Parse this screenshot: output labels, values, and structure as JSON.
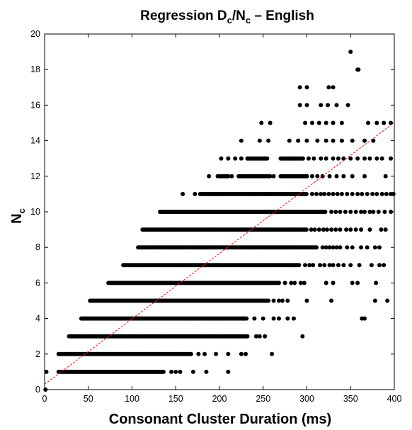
{
  "chart_data": {
    "type": "scatter",
    "title": {
      "main": "Regression D",
      "sub1": "c",
      "mid": "/N",
      "sub2": "c",
      "tail": " – English"
    },
    "xlabel": "Consonant Cluster Duration (ms)",
    "ylabel": {
      "main": "N",
      "sub": "c"
    },
    "xlim": [
      0,
      400
    ],
    "ylim": [
      0,
      20
    ],
    "xticks": [
      0,
      50,
      100,
      150,
      200,
      250,
      300,
      350,
      400
    ],
    "yticks": [
      0,
      2,
      4,
      6,
      8,
      10,
      12,
      14,
      16,
      18,
      20
    ],
    "xtick_labels": [
      "0",
      "50",
      "100",
      "150",
      "200",
      "250",
      "300",
      "350",
      "400"
    ],
    "ytick_labels": [
      "0",
      "2",
      "4",
      "6",
      "8",
      "10",
      "12",
      "14",
      "16",
      "18",
      "20"
    ],
    "grid": false,
    "point_color": "#000000",
    "regression_color": "#e8221a",
    "regression_line": {
      "intercept": 0.3,
      "slope": 0.0368
    },
    "series": [
      {
        "values": [
          {
            "y": 0,
            "ranges": [
              [
                1,
                1
              ]
            ]
          },
          {
            "y": 1,
            "ranges": [
              [
                2,
                2
              ],
              [
                16,
                137
              ]
            ],
            "points": [
              [
                145,
                1
              ],
              [
                150,
                1
              ],
              [
                155,
                1
              ],
              [
                170,
                1
              ],
              [
                185,
                1
              ],
              [
                210,
                1
              ]
            ]
          },
          {
            "y": 2,
            "ranges": [
              [
                16,
                168
              ]
            ],
            "points": [
              [
                176,
                2
              ],
              [
                183,
                2
              ],
              [
                196,
                2
              ],
              [
                210,
                2
              ],
              [
                225,
                2
              ],
              [
                230,
                2
              ],
              [
                260,
                2
              ]
            ]
          },
          {
            "y": 3,
            "ranges": [
              [
                28,
                232
              ]
            ],
            "points": [
              [
                242,
                3
              ],
              [
                246,
                3
              ],
              [
                252,
                3
              ],
              [
                295,
                3
              ]
            ]
          },
          {
            "y": 4,
            "ranges": [
              [
                42,
                232
              ]
            ],
            "points": [
              [
                240,
                4
              ],
              [
                250,
                4
              ],
              [
                262,
                4
              ],
              [
                268,
                4
              ],
              [
                278,
                4
              ],
              [
                285,
                4
              ],
              [
                363,
                4
              ],
              [
                366,
                4
              ]
            ]
          },
          {
            "y": 5,
            "ranges": [
              [
                52,
                256
              ]
            ],
            "points": [
              [
                262,
                5
              ],
              [
                268,
                5
              ],
              [
                272,
                5
              ],
              [
                278,
                5
              ],
              [
                300,
                5
              ],
              [
                328,
                5
              ],
              [
                378,
                5
              ],
              [
                392,
                5
              ]
            ]
          },
          {
            "y": 6,
            "ranges": [
              [
                73,
                268
              ]
            ],
            "points": [
              [
                275,
                6
              ],
              [
                282,
                6
              ],
              [
                286,
                6
              ],
              [
                293,
                6
              ],
              [
                297,
                6
              ],
              [
                322,
                6
              ],
              [
                330,
                6
              ],
              [
                352,
                6
              ],
              [
                358,
                6
              ],
              [
                379,
                6
              ]
            ]
          },
          {
            "y": 7,
            "ranges": [
              [
                90,
                292
              ]
            ],
            "points": [
              [
                298,
                7
              ],
              [
                303,
                7
              ],
              [
                307,
                7
              ],
              [
                315,
                7
              ],
              [
                320,
                7
              ],
              [
                326,
                7
              ],
              [
                330,
                7
              ],
              [
                336,
                7
              ],
              [
                342,
                7
              ],
              [
                350,
                7
              ],
              [
                360,
                7
              ],
              [
                374,
                7
              ],
              [
                383,
                7
              ],
              [
                388,
                7
              ]
            ]
          },
          {
            "y": 8,
            "ranges": [
              [
                107,
                312
              ]
            ],
            "points": [
              [
                318,
                8
              ],
              [
                322,
                8
              ],
              [
                326,
                8
              ],
              [
                330,
                8
              ],
              [
                334,
                8
              ],
              [
                338,
                8
              ],
              [
                346,
                8
              ],
              [
                352,
                8
              ],
              [
                362,
                8
              ],
              [
                369,
                8
              ],
              [
                378,
                8
              ],
              [
                383,
                8
              ]
            ]
          },
          {
            "y": 9,
            "ranges": [
              [
                112,
                300
              ]
            ],
            "points": [
              [
                305,
                9
              ],
              [
                309,
                9
              ],
              [
                314,
                9
              ],
              [
                319,
                9
              ],
              [
                323,
                9
              ],
              [
                328,
                9
              ],
              [
                333,
                9
              ],
              [
                338,
                9
              ],
              [
                345,
                9
              ],
              [
                350,
                9
              ],
              [
                356,
                9
              ],
              [
                362,
                9
              ],
              [
                372,
                9
              ],
              [
                385,
                9
              ],
              [
                390,
                9
              ]
            ]
          },
          {
            "y": 10,
            "ranges": [
              [
                132,
                322
              ]
            ],
            "points": [
              [
                328,
                10
              ],
              [
                333,
                10
              ],
              [
                338,
                10
              ],
              [
                344,
                10
              ],
              [
                350,
                10
              ],
              [
                356,
                10
              ],
              [
                362,
                10
              ],
              [
                366,
                10
              ],
              [
                372,
                10
              ],
              [
                376,
                10
              ],
              [
                382,
                10
              ],
              [
                389,
                10
              ],
              [
                396,
                10
              ]
            ]
          },
          {
            "y": 11,
            "ranges": [
              [
                178,
                300
              ]
            ],
            "points": [
              [
                158,
                11
              ],
              [
                172,
                11
              ],
              [
                306,
                11
              ],
              [
                311,
                11
              ],
              [
                316,
                11
              ],
              [
                320,
                11
              ],
              [
                325,
                11
              ],
              [
                330,
                11
              ],
              [
                335,
                11
              ],
              [
                340,
                11
              ],
              [
                346,
                11
              ],
              [
                352,
                11
              ],
              [
                358,
                11
              ],
              [
                363,
                11
              ],
              [
                369,
                11
              ],
              [
                375,
                11
              ],
              [
                380,
                11
              ],
              [
                386,
                11
              ],
              [
                391,
                11
              ],
              [
                396,
                11
              ],
              [
                399,
                11
              ]
            ]
          },
          {
            "y": 12,
            "ranges": [
              [
                198,
                210
              ],
              [
                222,
                258
              ],
              [
                270,
                300
              ]
            ],
            "points": [
              [
                188,
                12
              ],
              [
                214,
                12
              ],
              [
                262,
                12
              ],
              [
                306,
                12
              ],
              [
                312,
                12
              ],
              [
                318,
                12
              ],
              [
                326,
                12
              ],
              [
                334,
                12
              ],
              [
                342,
                12
              ],
              [
                352,
                12
              ],
              [
                366,
                12
              ],
              [
                390,
                12
              ]
            ]
          },
          {
            "y": 13,
            "ranges": [
              [
                232,
                255
              ],
              [
                270,
                296
              ]
            ],
            "points": [
              [
                202,
                13
              ],
              [
                210,
                13
              ],
              [
                218,
                13
              ],
              [
                225,
                13
              ],
              [
                302,
                13
              ],
              [
                308,
                13
              ],
              [
                316,
                13
              ],
              [
                322,
                13
              ],
              [
                330,
                13
              ],
              [
                336,
                13
              ],
              [
                342,
                13
              ],
              [
                350,
                13
              ],
              [
                358,
                13
              ],
              [
                366,
                13
              ],
              [
                372,
                13
              ],
              [
                380,
                13
              ],
              [
                386,
                13
              ],
              [
                396,
                13
              ]
            ]
          },
          {
            "y": 14,
            "points": [
              [
                225,
                14
              ],
              [
                246,
                14
              ],
              [
                256,
                14
              ],
              [
                280,
                14
              ],
              [
                290,
                14
              ],
              [
                300,
                14
              ],
              [
                312,
                14
              ],
              [
                322,
                14
              ],
              [
                330,
                14
              ],
              [
                340,
                14
              ],
              [
                352,
                14
              ],
              [
                366,
                14
              ],
              [
                376,
                14
              ]
            ]
          },
          {
            "y": 15,
            "points": [
              [
                248,
                15
              ],
              [
                258,
                15
              ],
              [
                298,
                15
              ],
              [
                306,
                15
              ],
              [
                314,
                15
              ],
              [
                322,
                15
              ],
              [
                330,
                15
              ],
              [
                340,
                15
              ],
              [
                370,
                15
              ],
              [
                380,
                15
              ],
              [
                388,
                15
              ],
              [
                396,
                15
              ]
            ]
          },
          {
            "y": 16,
            "points": [
              [
                292,
                16
              ],
              [
                300,
                16
              ],
              [
                316,
                16
              ],
              [
                324,
                16
              ],
              [
                334,
                16
              ],
              [
                347,
                16
              ]
            ]
          },
          {
            "y": 17,
            "points": [
              [
                292,
                17
              ],
              [
                300,
                17
              ],
              [
                325,
                17
              ],
              [
                330,
                17
              ]
            ]
          },
          {
            "y": 18,
            "points": [
              [
                358,
                18
              ],
              [
                359,
                18
              ]
            ]
          },
          {
            "y": 19,
            "points": [
              [
                350,
                19
              ]
            ]
          }
        ]
      }
    ]
  }
}
